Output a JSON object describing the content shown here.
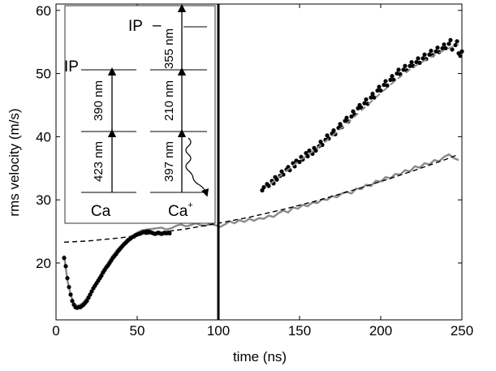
{
  "chart_data": {
    "type": "scatter",
    "xlabel": "time (ns)",
    "ylabel": "rms velocity (m/s)",
    "xlim": [
      0,
      250
    ],
    "ylim": [
      11,
      61
    ],
    "xticks": [
      0,
      50,
      100,
      150,
      200,
      250
    ],
    "yticks": [
      20,
      30,
      40,
      50,
      60
    ],
    "grid": false,
    "vline": {
      "x": 100,
      "color": "#000000"
    },
    "series": [
      {
        "kind": "black-dots-early",
        "color": "#000000",
        "points": [
          [
            5,
            20.8
          ],
          [
            6,
            19.5
          ],
          [
            7,
            17.6
          ],
          [
            8,
            16.2
          ],
          [
            9,
            15.0
          ],
          [
            10,
            14.0
          ],
          [
            11,
            13.4
          ],
          [
            12,
            13.0
          ],
          [
            13,
            12.9
          ],
          [
            14,
            13.0
          ],
          [
            15,
            13.0
          ],
          [
            16,
            13.2
          ],
          [
            17,
            13.4
          ],
          [
            18,
            13.7
          ],
          [
            19,
            14.0
          ],
          [
            20,
            14.5
          ],
          [
            21,
            15.0
          ],
          [
            22,
            15.5
          ],
          [
            23,
            16.0
          ],
          [
            24,
            16.4
          ],
          [
            25,
            16.8
          ],
          [
            26,
            17.2
          ],
          [
            27,
            17.6
          ],
          [
            28,
            18.0
          ],
          [
            29,
            18.5
          ],
          [
            30,
            18.9
          ],
          [
            31,
            19.3
          ],
          [
            32,
            19.6
          ],
          [
            33,
            20.0
          ],
          [
            34,
            20.4
          ],
          [
            35,
            20.8
          ],
          [
            36,
            21.1
          ],
          [
            37,
            21.4
          ],
          [
            38,
            21.8
          ],
          [
            39,
            22.1
          ],
          [
            40,
            22.4
          ],
          [
            41,
            22.7
          ],
          [
            42,
            23.0
          ],
          [
            43,
            23.2
          ],
          [
            44,
            23.5
          ],
          [
            45,
            23.7
          ],
          [
            46,
            23.9
          ],
          [
            47,
            24.1
          ],
          [
            48,
            24.2
          ],
          [
            49,
            24.4
          ],
          [
            50,
            24.5
          ],
          [
            51,
            24.6
          ],
          [
            52,
            24.7
          ],
          [
            53,
            24.8
          ],
          [
            54,
            24.9
          ],
          [
            55,
            24.9
          ],
          [
            56,
            25.0
          ],
          [
            57,
            25.0
          ],
          [
            58,
            24.9
          ],
          [
            59,
            24.8
          ],
          [
            60,
            24.7
          ],
          [
            61,
            24.6
          ],
          [
            62,
            24.7
          ],
          [
            63,
            24.8
          ],
          [
            64,
            24.7
          ],
          [
            65,
            24.6
          ],
          [
            66,
            24.7
          ],
          [
            67,
            24.8
          ],
          [
            68,
            24.7
          ],
          [
            69,
            24.8
          ],
          [
            70,
            24.7
          ]
        ]
      },
      {
        "kind": "black-dots-late",
        "color": "#000000",
        "points": [
          [
            127,
            31.5
          ],
          [
            128,
            32.0
          ],
          [
            130,
            32.5
          ],
          [
            131,
            32.2
          ],
          [
            133,
            33.0
          ],
          [
            134,
            32.6
          ],
          [
            135,
            33.6
          ],
          [
            136,
            33.2
          ],
          [
            138,
            33.8
          ],
          [
            139,
            34.5
          ],
          [
            140,
            34.0
          ],
          [
            142,
            34.8
          ],
          [
            143,
            35.2
          ],
          [
            144,
            34.7
          ],
          [
            146,
            35.8
          ],
          [
            147,
            35.3
          ],
          [
            148,
            36.2
          ],
          [
            150,
            36.0
          ],
          [
            151,
            36.8
          ],
          [
            152,
            36.4
          ],
          [
            154,
            37.4
          ],
          [
            155,
            36.9
          ],
          [
            156,
            37.8
          ],
          [
            158,
            37.3
          ],
          [
            159,
            38.2
          ],
          [
            160,
            37.8
          ],
          [
            162,
            38.5
          ],
          [
            163,
            39.2
          ],
          [
            164,
            38.7
          ],
          [
            166,
            39.5
          ],
          [
            167,
            40.2
          ],
          [
            168,
            39.7
          ],
          [
            170,
            40.5
          ],
          [
            171,
            41.0
          ],
          [
            172,
            40.4
          ],
          [
            174,
            41.4
          ],
          [
            175,
            42.0
          ],
          [
            176,
            41.5
          ],
          [
            178,
            42.5
          ],
          [
            179,
            43.0
          ],
          [
            180,
            42.4
          ],
          [
            182,
            43.2
          ],
          [
            183,
            44.0
          ],
          [
            184,
            43.5
          ],
          [
            186,
            44.5
          ],
          [
            187,
            45.0
          ],
          [
            188,
            44.6
          ],
          [
            190,
            45.3
          ],
          [
            191,
            45.9
          ],
          [
            192,
            45.2
          ],
          [
            194,
            46.2
          ],
          [
            195,
            46.8
          ],
          [
            196,
            46.2
          ],
          [
            198,
            47.3
          ],
          [
            199,
            47.9
          ],
          [
            200,
            47.3
          ],
          [
            202,
            48.2
          ],
          [
            203,
            48.8
          ],
          [
            204,
            48.1
          ],
          [
            206,
            49.0
          ],
          [
            207,
            49.6
          ],
          [
            208,
            49.0
          ],
          [
            210,
            50.0
          ],
          [
            211,
            50.6
          ],
          [
            212,
            49.9
          ],
          [
            214,
            50.6
          ],
          [
            215,
            51.2
          ],
          [
            216,
            50.5
          ],
          [
            218,
            51.2
          ],
          [
            219,
            51.8
          ],
          [
            220,
            51.2
          ],
          [
            222,
            51.8
          ],
          [
            223,
            52.4
          ],
          [
            224,
            51.7
          ],
          [
            226,
            52.4
          ],
          [
            227,
            53.0
          ],
          [
            228,
            52.3
          ],
          [
            230,
            53.0
          ],
          [
            231,
            53.6
          ],
          [
            232,
            52.9
          ],
          [
            234,
            53.5
          ],
          [
            235,
            54.1
          ],
          [
            236,
            53.4
          ],
          [
            238,
            54.0
          ],
          [
            239,
            54.6
          ],
          [
            240,
            54.0
          ],
          [
            242,
            54.7
          ],
          [
            243,
            55.3
          ],
          [
            244,
            53.8
          ],
          [
            246,
            54.5
          ],
          [
            247,
            55.1
          ],
          [
            248,
            53.2
          ],
          [
            249,
            52.8
          ],
          [
            250,
            53.5
          ]
        ]
      },
      {
        "kind": "gray-solid-simulation",
        "color": "#8a8a8a",
        "points": [
          [
            5,
            21.2
          ],
          [
            7,
            17.3
          ],
          [
            9,
            15.0
          ],
          [
            11,
            13.6
          ],
          [
            13,
            13.2
          ],
          [
            15,
            13.4
          ],
          [
            17,
            13.8
          ],
          [
            20,
            14.8
          ],
          [
            23,
            16.2
          ],
          [
            26,
            17.5
          ],
          [
            29,
            18.9
          ],
          [
            32,
            20.0
          ],
          [
            35,
            21.2
          ],
          [
            38,
            22.2
          ],
          [
            41,
            23.0
          ],
          [
            44,
            23.8
          ],
          [
            47,
            24.3
          ],
          [
            50,
            24.8
          ],
          [
            53,
            25.2
          ],
          [
            56,
            25.3
          ],
          [
            59,
            25.4
          ],
          [
            62,
            25.5
          ],
          [
            65,
            25.6
          ],
          [
            68,
            25.3
          ],
          [
            71,
            25.5
          ],
          [
            74,
            25.9
          ],
          [
            77,
            26.1
          ],
          [
            80,
            25.8
          ],
          [
            83,
            26.0
          ],
          [
            86,
            26.3
          ],
          [
            89,
            26.0
          ],
          [
            92,
            25.9
          ],
          [
            95,
            26.2
          ],
          [
            98,
            26.0
          ],
          [
            101,
            25.7
          ],
          [
            104,
            26.1
          ],
          [
            107,
            26.6
          ],
          [
            110,
            26.3
          ],
          [
            113,
            26.8
          ],
          [
            116,
            26.5
          ],
          [
            119,
            27.0
          ],
          [
            122,
            26.7
          ],
          [
            125,
            27.1
          ],
          [
            128,
            27.0
          ],
          [
            131,
            27.5
          ],
          [
            134,
            27.3
          ],
          [
            137,
            27.9
          ],
          [
            140,
            28.3
          ],
          [
            143,
            28.0
          ],
          [
            146,
            28.8
          ],
          [
            149,
            28.6
          ],
          [
            152,
            29.2
          ],
          [
            155,
            29.0
          ],
          [
            158,
            29.6
          ],
          [
            161,
            29.5
          ],
          [
            164,
            30.1
          ],
          [
            167,
            30.0
          ],
          [
            170,
            30.6
          ],
          [
            173,
            30.4
          ],
          [
            176,
            31.0
          ],
          [
            179,
            31.3
          ],
          [
            182,
            31.0
          ],
          [
            185,
            31.8
          ],
          [
            188,
            31.7
          ],
          [
            191,
            32.4
          ],
          [
            194,
            32.2
          ],
          [
            197,
            33.0
          ],
          [
            200,
            32.9
          ],
          [
            203,
            33.6
          ],
          [
            206,
            33.4
          ],
          [
            209,
            34.1
          ],
          [
            212,
            34.0
          ],
          [
            215,
            34.7
          ],
          [
            218,
            34.5
          ],
          [
            221,
            35.3
          ],
          [
            224,
            35.1
          ],
          [
            227,
            35.8
          ],
          [
            230,
            35.6
          ],
          [
            233,
            36.3
          ],
          [
            236,
            36.1
          ],
          [
            239,
            36.8
          ],
          [
            242,
            37.2
          ],
          [
            245,
            36.6
          ],
          [
            248,
            36.3
          ]
        ]
      },
      {
        "kind": "gray-dashed-fit",
        "color": "#8a8a8a",
        "points": [
          [
            132,
            32.5
          ],
          [
            140,
            34.2
          ],
          [
            150,
            36.2
          ],
          [
            160,
            38.0
          ],
          [
            170,
            40.1
          ],
          [
            180,
            42.3
          ],
          [
            190,
            44.6
          ],
          [
            200,
            46.9
          ],
          [
            210,
            49.1
          ],
          [
            220,
            51.0
          ],
          [
            230,
            52.5
          ],
          [
            240,
            53.8
          ],
          [
            248,
            54.6
          ]
        ]
      },
      {
        "kind": "black-dashed-fit",
        "color": "#000000",
        "points": [
          [
            5,
            23.3
          ],
          [
            20,
            23.5
          ],
          [
            40,
            24.0
          ],
          [
            60,
            24.7
          ],
          [
            80,
            25.4
          ],
          [
            100,
            26.3
          ],
          [
            120,
            27.3
          ],
          [
            140,
            28.5
          ],
          [
            160,
            29.8
          ],
          [
            180,
            31.3
          ],
          [
            200,
            32.9
          ],
          [
            220,
            34.6
          ],
          [
            240,
            36.4
          ],
          [
            248,
            37.2
          ]
        ]
      }
    ]
  },
  "inset": {
    "ip_left": "IP",
    "ip_right": "IP",
    "ca_label": "Ca",
    "caplus_label": "Ca",
    "caplus_sup": "+",
    "wl_423": "423 nm",
    "wl_390": "390 nm",
    "wl_397": "397 nm",
    "wl_210": "210 nm",
    "wl_355": "355 nm"
  }
}
